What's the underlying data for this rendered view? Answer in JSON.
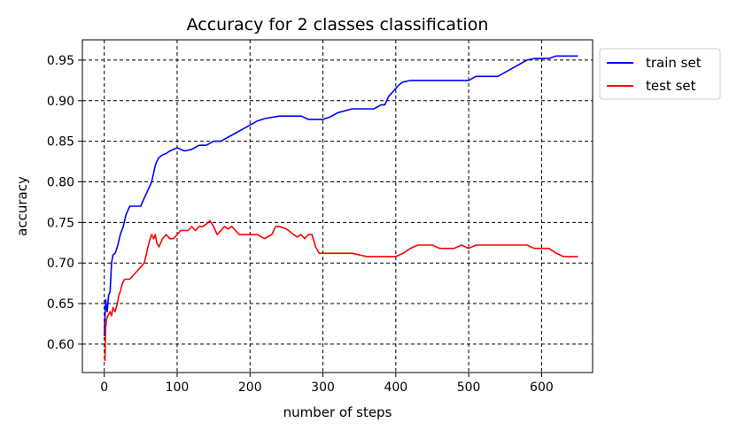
{
  "chart_data": {
    "type": "line",
    "title": "Accuracy for 2 classes classification",
    "xlabel": "number of steps",
    "ylabel": "accuracy",
    "xlim": [
      -30,
      670
    ],
    "ylim": [
      0.565,
      0.975
    ],
    "xticks": [
      0,
      100,
      200,
      300,
      400,
      500,
      600
    ],
    "yticks": [
      0.6,
      0.65,
      0.7,
      0.75,
      0.8,
      0.85,
      0.9,
      0.95
    ],
    "grid": true,
    "grid_style": "dashed",
    "legend_position": "outside-top-right",
    "series": [
      {
        "name": "train set",
        "color": "#0000ff",
        "x": [
          0,
          2,
          4,
          6,
          8,
          10,
          12,
          15,
          18,
          22,
          26,
          30,
          35,
          40,
          45,
          50,
          55,
          60,
          65,
          70,
          72,
          75,
          80,
          85,
          90,
          95,
          100,
          110,
          120,
          130,
          140,
          150,
          160,
          170,
          180,
          190,
          200,
          210,
          220,
          240,
          260,
          270,
          280,
          290,
          300,
          310,
          320,
          340,
          360,
          370,
          380,
          385,
          390,
          395,
          400,
          405,
          410,
          420,
          440,
          460,
          480,
          490,
          500,
          510,
          520,
          530,
          540,
          550,
          560,
          570,
          580,
          590,
          600,
          610,
          620,
          630,
          640,
          650
        ],
        "y": [
          0.61,
          0.655,
          0.64,
          0.66,
          0.665,
          0.7,
          0.71,
          0.712,
          0.72,
          0.735,
          0.745,
          0.76,
          0.77,
          0.77,
          0.77,
          0.77,
          0.78,
          0.79,
          0.8,
          0.82,
          0.825,
          0.83,
          0.833,
          0.835,
          0.838,
          0.84,
          0.842,
          0.838,
          0.84,
          0.845,
          0.845,
          0.85,
          0.85,
          0.855,
          0.86,
          0.865,
          0.87,
          0.875,
          0.878,
          0.881,
          0.881,
          0.881,
          0.877,
          0.877,
          0.877,
          0.88,
          0.885,
          0.89,
          0.89,
          0.89,
          0.895,
          0.895,
          0.905,
          0.91,
          0.915,
          0.92,
          0.923,
          0.925,
          0.925,
          0.925,
          0.925,
          0.925,
          0.925,
          0.93,
          0.93,
          0.93,
          0.93,
          0.935,
          0.94,
          0.945,
          0.95,
          0.952,
          0.952,
          0.952,
          0.955,
          0.955,
          0.955,
          0.955
        ]
      },
      {
        "name": "test set",
        "color": "#ff0000",
        "x": [
          0,
          1,
          2,
          3,
          5,
          8,
          10,
          12,
          15,
          18,
          20,
          22,
          25,
          28,
          30,
          35,
          40,
          45,
          50,
          55,
          60,
          63,
          65,
          68,
          70,
          72,
          75,
          80,
          85,
          90,
          95,
          100,
          105,
          110,
          115,
          120,
          125,
          130,
          135,
          140,
          145,
          150,
          155,
          160,
          165,
          170,
          175,
          180,
          185,
          190,
          195,
          200,
          210,
          220,
          230,
          235,
          240,
          250,
          260,
          265,
          270,
          275,
          280,
          285,
          290,
          295,
          300,
          320,
          340,
          360,
          380,
          400,
          410,
          420,
          430,
          440,
          450,
          460,
          470,
          480,
          490,
          500,
          510,
          520,
          530,
          540,
          550,
          560,
          570,
          580,
          590,
          600,
          610,
          620,
          630,
          640,
          650
        ],
        "y": [
          0.585,
          0.58,
          0.62,
          0.63,
          0.635,
          0.64,
          0.635,
          0.645,
          0.64,
          0.65,
          0.66,
          0.665,
          0.675,
          0.68,
          0.68,
          0.68,
          0.685,
          0.69,
          0.695,
          0.7,
          0.72,
          0.73,
          0.735,
          0.73,
          0.735,
          0.725,
          0.72,
          0.73,
          0.735,
          0.73,
          0.73,
          0.735,
          0.74,
          0.74,
          0.74,
          0.745,
          0.74,
          0.745,
          0.745,
          0.748,
          0.752,
          0.745,
          0.735,
          0.74,
          0.745,
          0.742,
          0.745,
          0.74,
          0.735,
          0.735,
          0.735,
          0.735,
          0.735,
          0.73,
          0.735,
          0.745,
          0.745,
          0.742,
          0.735,
          0.732,
          0.735,
          0.73,
          0.735,
          0.735,
          0.72,
          0.712,
          0.712,
          0.712,
          0.712,
          0.708,
          0.708,
          0.708,
          0.712,
          0.718,
          0.722,
          0.722,
          0.722,
          0.718,
          0.718,
          0.718,
          0.722,
          0.718,
          0.722,
          0.722,
          0.722,
          0.722,
          0.722,
          0.722,
          0.722,
          0.722,
          0.718,
          0.718,
          0.718,
          0.712,
          0.708,
          0.708,
          0.708
        ]
      }
    ]
  }
}
